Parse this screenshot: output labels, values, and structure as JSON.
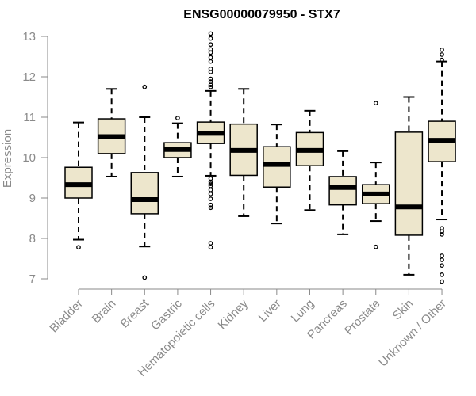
{
  "chart_data": {
    "type": "boxplot",
    "title": "ENSG00000079950 - STX7",
    "xlabel": "",
    "ylabel": "Expression",
    "ylim": [
      7,
      13
    ],
    "yticks": [
      7,
      8,
      9,
      10,
      11,
      12,
      13
    ],
    "colors": {
      "box_fill": "#ede6cc",
      "axis": "#8a8a8a",
      "median": "#000000"
    },
    "categories": [
      "Bladder",
      "Brain",
      "Breast",
      "Gastric",
      "Hematopoietic cells",
      "Kidney",
      "Liver",
      "Lung",
      "Pancreas",
      "Prostate",
      "Skin",
      "Unknown / Other"
    ],
    "boxes": [
      {
        "name": "Bladder",
        "whisker_low": 7.97,
        "q1": 9.0,
        "median": 9.33,
        "q3": 9.76,
        "whisker_high": 10.87,
        "outliers": [
          7.78
        ]
      },
      {
        "name": "Brain",
        "whisker_low": 9.53,
        "q1": 10.1,
        "median": 10.52,
        "q3": 10.96,
        "whisker_high": 11.7,
        "outliers": []
      },
      {
        "name": "Breast",
        "whisker_low": 7.8,
        "q1": 8.61,
        "median": 8.96,
        "q3": 9.63,
        "whisker_high": 11.0,
        "outliers": [
          11.75,
          7.03
        ]
      },
      {
        "name": "Gastric",
        "whisker_low": 9.53,
        "q1": 10.0,
        "median": 10.2,
        "q3": 10.37,
        "whisker_high": 10.85,
        "outliers": [
          10.98
        ]
      },
      {
        "name": "Hematopoietic cells",
        "whisker_low": 9.55,
        "q1": 10.35,
        "median": 10.6,
        "q3": 10.88,
        "whisker_high": 11.65,
        "outliers": [
          13.07,
          12.95,
          12.8,
          12.68,
          12.6,
          12.48,
          12.38,
          12.2,
          12.12,
          11.95,
          11.88,
          11.8,
          11.75,
          9.48,
          9.4,
          9.35,
          9.3,
          9.2,
          9.1,
          8.98,
          8.83,
          8.76,
          7.88,
          7.78
        ]
      },
      {
        "name": "Kidney",
        "whisker_low": 8.55,
        "q1": 9.56,
        "median": 10.18,
        "q3": 10.83,
        "whisker_high": 11.7,
        "outliers": []
      },
      {
        "name": "Liver",
        "whisker_low": 8.37,
        "q1": 9.27,
        "median": 9.83,
        "q3": 10.27,
        "whisker_high": 10.82,
        "outliers": []
      },
      {
        "name": "Lung",
        "whisker_low": 8.7,
        "q1": 9.8,
        "median": 10.18,
        "q3": 10.62,
        "whisker_high": 11.16,
        "outliers": []
      },
      {
        "name": "Pancreas",
        "whisker_low": 8.1,
        "q1": 8.83,
        "median": 9.26,
        "q3": 9.53,
        "whisker_high": 10.16,
        "outliers": []
      },
      {
        "name": "Prostate",
        "whisker_low": 8.43,
        "q1": 8.86,
        "median": 9.1,
        "q3": 9.33,
        "whisker_high": 9.88,
        "outliers": [
          11.35,
          7.79
        ]
      },
      {
        "name": "Skin",
        "whisker_low": 7.1,
        "q1": 8.08,
        "median": 8.78,
        "q3": 10.63,
        "whisker_high": 11.5,
        "outliers": []
      },
      {
        "name": "Unknown / Other",
        "whisker_low": 8.47,
        "q1": 9.9,
        "median": 10.43,
        "q3": 10.9,
        "whisker_high": 12.38,
        "outliers": [
          12.67,
          12.55,
          12.42,
          8.25,
          8.17,
          8.1,
          7.57,
          7.47,
          7.33,
          7.1,
          6.93
        ]
      }
    ]
  }
}
